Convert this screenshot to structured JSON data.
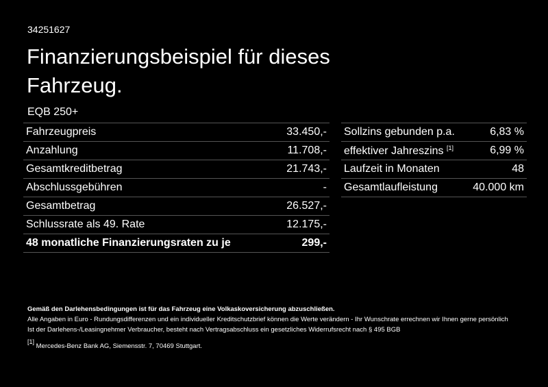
{
  "id": "34251627",
  "title": "Finanzierungsbeispiel für dieses Fahrzeug.",
  "model": "EQB 250+",
  "left_table": {
    "rows": [
      [
        "Fahrzeugpreis",
        "33.450,-"
      ],
      [
        "Anzahlung",
        "11.708,-"
      ],
      [
        "Gesamtkreditbetrag",
        "21.743,-"
      ],
      [
        "Abschlussgebühren",
        "-"
      ],
      [
        "Gesamtbetrag",
        "26.527,-"
      ],
      [
        "Schlussrate als 49. Rate",
        "12.175,-"
      ],
      [
        "48 monatliche Finanzierungsraten zu je",
        "299,-"
      ]
    ]
  },
  "right_table": {
    "rows": [
      {
        "label": "Sollzins gebunden p.a.",
        "value": "6,83 %"
      },
      {
        "label": "effektiver Jahreszins",
        "note": "[1]",
        "value": "6,99 %"
      },
      {
        "label": "Laufzeit in Monaten",
        "value": "48"
      },
      {
        "label": "Gesamtlaufleistung",
        "value": "40.000 km"
      }
    ]
  },
  "notes": {
    "bold": "Gemäß den Darlehensbedingungen ist für das Fahrzeug eine Volkaskoversicherung abzuschließen.",
    "lines": [
      "Alle Angaben in Euro - Rundungsdifferenzen und ein individueller Kreditschutzbrief können die Werte verändern - Ihr Wunschrate errechnen wir Ihnen gerne persönlich",
      "Ist der Darlehens-/Leasingnehmer Verbraucher, besteht nach Vertragsabschluss ein gesetzliches Widerrufsrecht nach § 495 BGB"
    ]
  },
  "footnote": {
    "marker": "[1]",
    "text": "Mercedes-Benz Bank AG, Siemensstr. 7, 70469 Stuttgart."
  }
}
